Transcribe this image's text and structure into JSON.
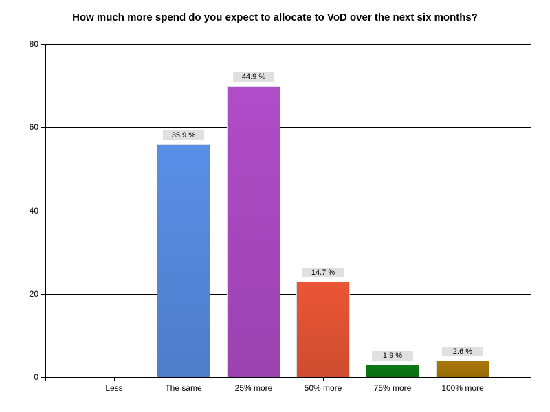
{
  "chart_data": {
    "type": "bar",
    "title": "How much more spend do you expect to allocate to VoD over the next six months?",
    "xlabel": "",
    "ylabel": "",
    "ylim": [
      0,
      80
    ],
    "yticks": [
      0,
      20,
      40,
      60,
      80
    ],
    "grid": true,
    "legend": null,
    "categories": [
      "Less",
      "The same",
      "25% more",
      "50% more",
      "75% more",
      "100% more"
    ],
    "values": [
      0,
      56,
      70,
      23,
      3,
      4
    ],
    "data_labels": [
      "",
      "35.9 %",
      "44.9 %",
      "14.7 %",
      "1.9 %",
      "2.6 %"
    ],
    "colors": [
      "",
      "#5a8ee6",
      "#b04cc8",
      "#ea5636",
      "#0c7a12",
      "#aa7808"
    ]
  },
  "yticks": [
    "0",
    "20",
    "40",
    "60",
    "80"
  ]
}
